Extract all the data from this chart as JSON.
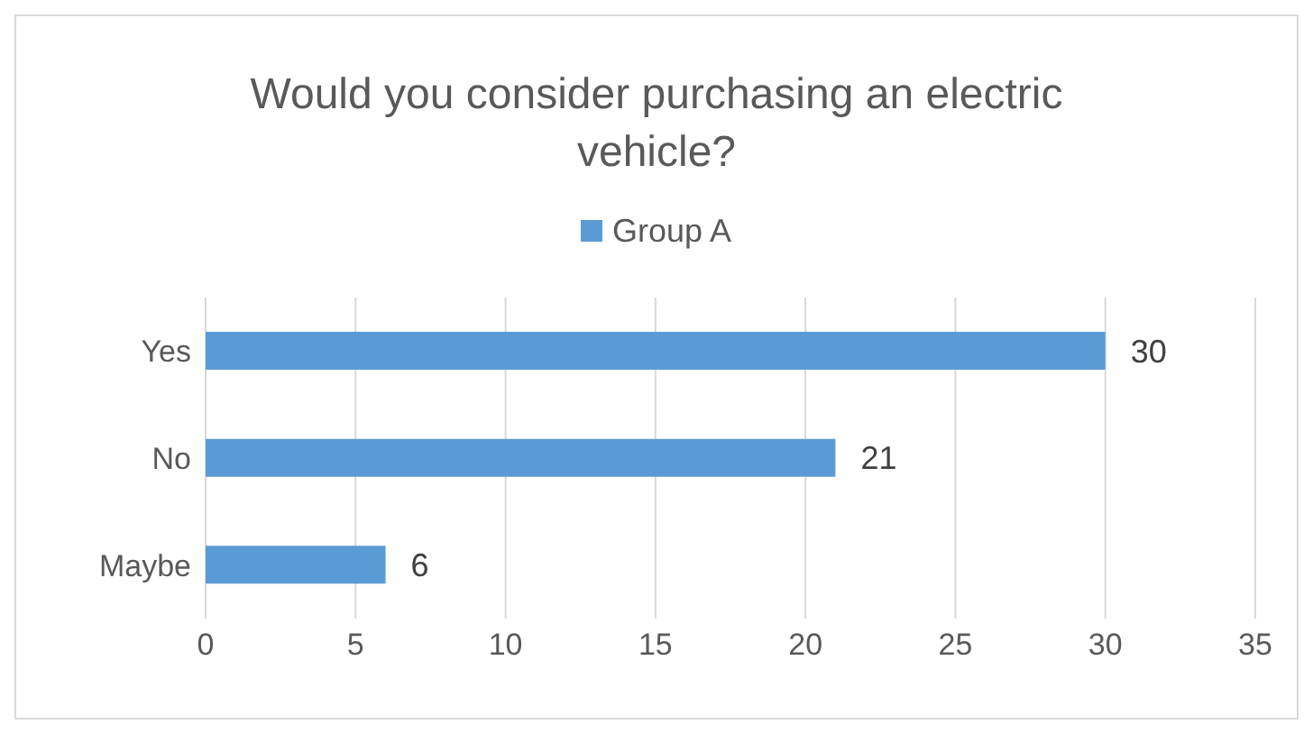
{
  "chart_data": {
    "type": "bar",
    "orientation": "horizontal",
    "title": "Would you consider purchasing an electric vehicle?",
    "categories": [
      "Yes",
      "No",
      "Maybe"
    ],
    "series": [
      {
        "name": "Group A",
        "color": "#5b9bd5",
        "values": [
          30,
          21,
          6
        ]
      }
    ],
    "xlim": [
      0,
      35
    ],
    "xticks": [
      0,
      5,
      10,
      15,
      20,
      25,
      30,
      35
    ],
    "grid": "x",
    "legend": "top",
    "data_labels": true
  }
}
